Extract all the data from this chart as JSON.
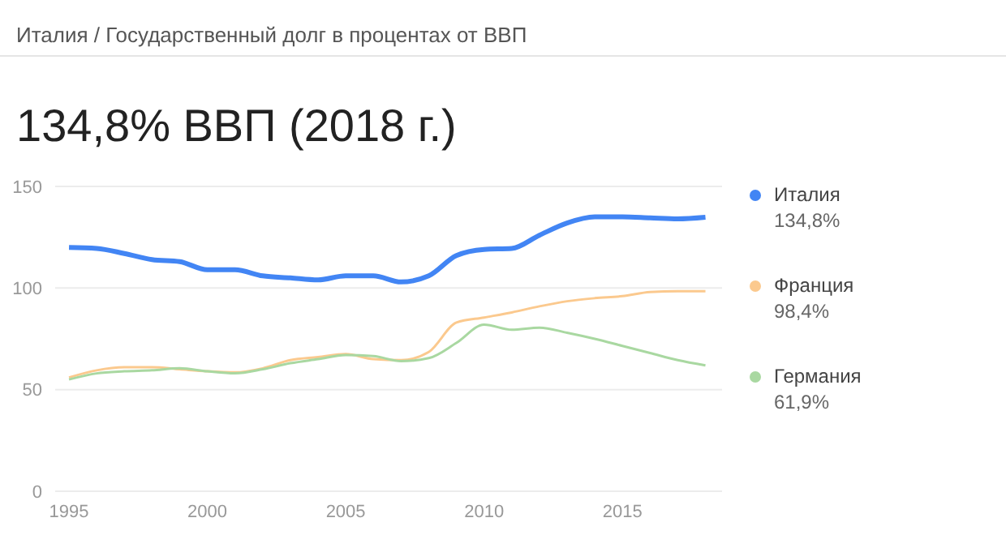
{
  "chart_data": {
    "type": "line",
    "subtitle": "Италия / Государственный долг в процентах от ВВП",
    "title": "134,8% ВВП (2018 г.)",
    "x": [
      1995,
      1996,
      1997,
      1998,
      1999,
      2000,
      2001,
      2002,
      2003,
      2004,
      2005,
      2006,
      2007,
      2008,
      2009,
      2010,
      2011,
      2012,
      2013,
      2014,
      2015,
      2016,
      2017,
      2018
    ],
    "series": [
      {
        "name": "Италия",
        "color": "#4285f4",
        "values": [
          120,
          119.5,
          117,
          114,
          113,
          109,
          109,
          106,
          105,
          104,
          106,
          106,
          103,
          106,
          116,
          119,
          119.5,
          126,
          132,
          135,
          135,
          134.5,
          134,
          134.8
        ]
      },
      {
        "name": "Франция",
        "color": "#fbc98e",
        "values": [
          56,
          59.5,
          61,
          61,
          60,
          59,
          58.5,
          60.5,
          64.5,
          66,
          67.5,
          65,
          64.5,
          68.5,
          83,
          85.5,
          88,
          91,
          93.5,
          95,
          96,
          98,
          98.4,
          98.4
        ]
      },
      {
        "name": "Германия",
        "color": "#a9d8a1",
        "values": [
          55,
          58,
          59,
          59.5,
          60.5,
          59,
          58,
          60,
          63,
          65,
          67,
          66.5,
          64,
          65.5,
          73,
          82,
          79.5,
          80.5,
          78,
          75,
          71.5,
          68,
          64.5,
          61.9
        ]
      }
    ],
    "annotations": [
      "134,8%",
      "98,4%",
      "61,9%"
    ],
    "xlim": [
      1994.5,
      2018.6
    ],
    "xticks": [
      1995,
      2000,
      2005,
      2010,
      2015
    ],
    "ylim": [
      0,
      150
    ],
    "yticks": [
      0,
      50,
      100,
      150
    ],
    "grid": "y",
    "legend": "right",
    "marker": "none",
    "line_style": "solid"
  }
}
